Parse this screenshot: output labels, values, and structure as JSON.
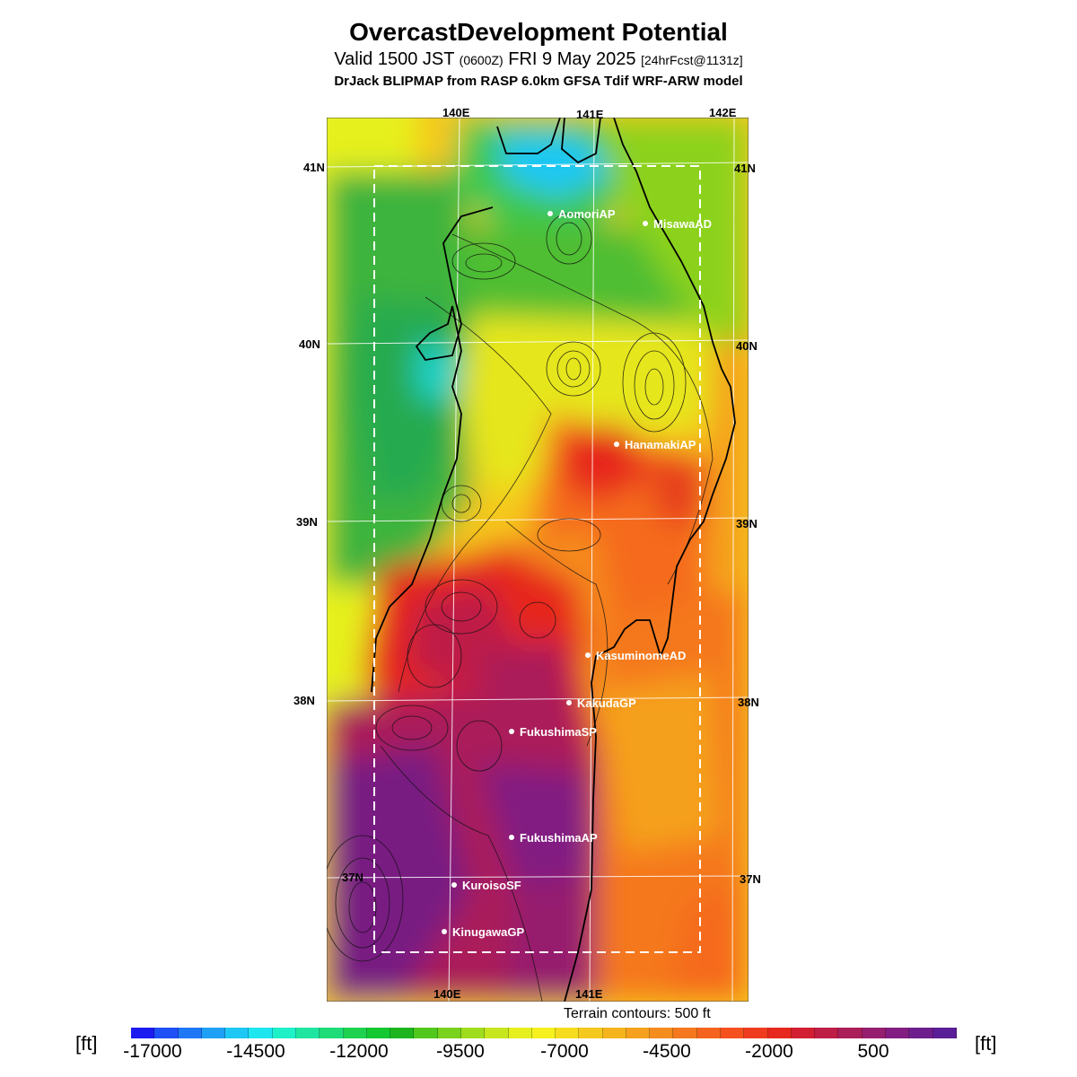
{
  "title": "OvercastDevelopment Potential",
  "subtitle": {
    "valid": "Valid 1500 JST",
    "zulu": "(0600Z)",
    "date": "FRI 9 May 2025",
    "forecast": "[24hrFcst@1131z]"
  },
  "model_line": "DrJack BLIPMAP from RASP 6.0km GFSA Tdif WRF-ARW model",
  "axes": {
    "lon_top": [
      "140E",
      "141E",
      "142E"
    ],
    "lon_bottom": [
      "140E",
      "141E"
    ],
    "lat_left": [
      "41N",
      "40N",
      "39N",
      "38N",
      "37N"
    ],
    "lat_right": [
      "41N",
      "40N",
      "39N",
      "38N",
      "37N"
    ]
  },
  "stations": [
    "AomoriAP",
    "MisawaAD",
    "HanamakiAP",
    "KasuminomeAD",
    "KakudaGP",
    "FukushimaSP",
    "FukushimaAP",
    "KuroisoSF",
    "KinugawaGP"
  ],
  "terrain_note": "Terrain contours: 500 ft",
  "colorbar": {
    "unit_left": "[ft]",
    "unit_right": "[ft]",
    "ticks": [
      "-17000",
      "-14500",
      "-12000",
      "-9500",
      "-7000",
      "-4500",
      "-2000",
      "500"
    ],
    "colors": [
      "#1c1cf0",
      "#1e50f5",
      "#1e78f5",
      "#1ea0f5",
      "#1ec8f5",
      "#1ee6f0",
      "#1ef0c8",
      "#1ee6a0",
      "#1edc78",
      "#1ed250",
      "#14c832",
      "#1eb41e",
      "#50c81e",
      "#78d21e",
      "#a0dc1e",
      "#c8e61e",
      "#e6f01e",
      "#f5f01e",
      "#f5dc1e",
      "#f5c81e",
      "#f5b41e",
      "#f5a01e",
      "#f58c1e",
      "#f5781e",
      "#f5641e",
      "#f5501e",
      "#f03c1e",
      "#e6281e",
      "#d21e32",
      "#be1e46",
      "#aa1e5a",
      "#961e6e",
      "#821e82",
      "#6e1e8c",
      "#5a1e96"
    ]
  }
}
